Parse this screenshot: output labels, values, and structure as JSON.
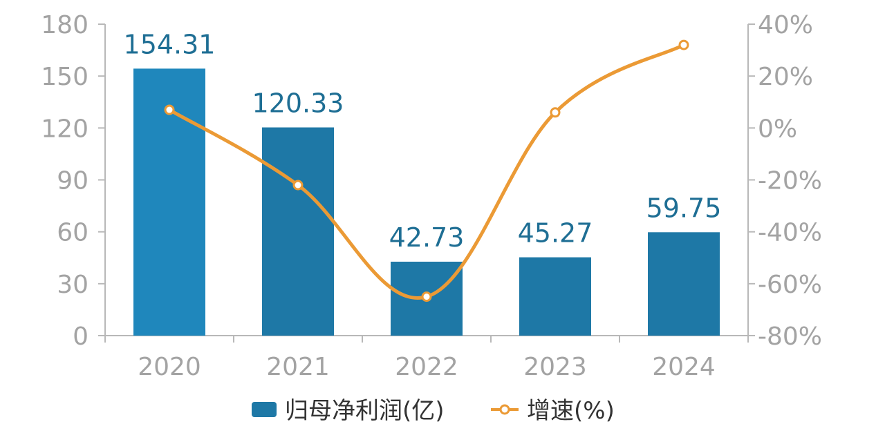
{
  "chart_data": {
    "type": "bar",
    "categories": [
      "2020",
      "2021",
      "2022",
      "2023",
      "2024"
    ],
    "series": [
      {
        "name": "归母净利润(亿)",
        "type": "bar",
        "axis": "left",
        "values": [
          154.31,
          120.33,
          42.73,
          45.27,
          59.75
        ],
        "labels": [
          "154.31",
          "120.33",
          "42.73",
          "45.27",
          "59.75"
        ]
      },
      {
        "name": "增速(%)",
        "type": "line",
        "axis": "right",
        "values": [
          7,
          -22,
          -65,
          6,
          32
        ]
      }
    ],
    "y_left": {
      "ylim": [
        0,
        180
      ],
      "ticks": [
        "0",
        "30",
        "60",
        "90",
        "120",
        "150",
        "180"
      ]
    },
    "y_right": {
      "ylim": [
        -80,
        40
      ],
      "ticks": [
        "-80%",
        "-60%",
        "-40%",
        "-20%",
        "0%",
        "20%",
        "40%"
      ]
    },
    "legend": {
      "position": "bottom"
    },
    "grid": false,
    "colors": {
      "bar": "#1e78a6",
      "bar_first": "#1f87bc",
      "line": "#eb9a35",
      "axis": "#b8b8b8"
    }
  }
}
